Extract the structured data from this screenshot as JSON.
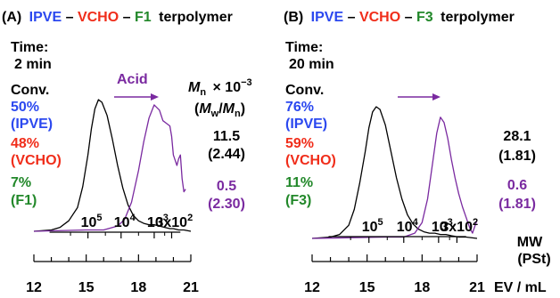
{
  "colors": {
    "ipve": "#2b48ef",
    "vcho": "#f02d1a",
    "f_monomer": "#22882a",
    "acid": "#7a2aa0",
    "black": "#000000"
  },
  "chart_data": [
    {
      "type": "line",
      "title": {
        "label": "(A)",
        "monomer1": "IPVE",
        "dash1": "–",
        "monomer2": "VCHO",
        "dash2": "–",
        "monomer3": "F1",
        "suffix": "terpolymer"
      },
      "time": {
        "label": "Time:",
        "value": "2 min"
      },
      "conversion": {
        "label": "Conv.",
        "ipve_value": "50%",
        "ipve_name": "(IPVE)",
        "vcho_value": "48%",
        "vcho_name": "(VCHO)",
        "f_value": "7%",
        "f_name": "(F1)"
      },
      "arrow_label": "Acid",
      "mn_header": {
        "mn": "M",
        "mn_sub": "n",
        "times": "× 10",
        "exp": "−3",
        "open": "(",
        "mw": "M",
        "mw_sub": "w",
        "slash": "/",
        "mn2": "M",
        "mn2_sub": "n",
        "close": ")"
      },
      "values": {
        "black_mn": "11.5",
        "black_pdi": "(2.44)",
        "purple_mn": "0.5",
        "purple_pdi": "(2.30)"
      },
      "x_axis": {
        "xlabel": "",
        "range": [
          12,
          21
        ],
        "ticks": [
          "12",
          "15",
          "18",
          "21"
        ]
      },
      "mw_axis": {
        "ticks": [
          {
            "ev": 15.1,
            "base": "10",
            "exp": "5"
          },
          {
            "ev": 17.0,
            "base": "10",
            "exp": "4"
          },
          {
            "ev": 18.9,
            "base": "10",
            "exp": "3"
          },
          {
            "ev": 19.9,
            "label": "3x10",
            "exp": "2"
          }
        ]
      },
      "series": [
        {
          "color": "black",
          "x": [
            12.0,
            13.0,
            13.5,
            14.0,
            14.5,
            14.8,
            15.1,
            15.3,
            15.5,
            15.7,
            15.9,
            16.2,
            16.5,
            16.8,
            17.1,
            17.4,
            17.7,
            18.0,
            18.3,
            18.6,
            18.9,
            19.2,
            19.5,
            19.8,
            20.0,
            20.3,
            20.6,
            21.0
          ],
          "y": [
            0.0,
            0.01,
            0.03,
            0.08,
            0.18,
            0.34,
            0.58,
            0.78,
            0.93,
            1.0,
            0.98,
            0.88,
            0.7,
            0.5,
            0.33,
            0.2,
            0.12,
            0.08,
            0.06,
            0.05,
            0.05,
            0.04,
            0.03,
            0.02,
            0.02,
            0.01,
            0.01,
            0.0
          ]
        },
        {
          "color": "acid",
          "x": [
            12.0,
            15.0,
            16.0,
            16.8,
            17.2,
            17.6,
            18.0,
            18.3,
            18.6,
            18.9,
            19.2,
            19.4,
            19.6,
            19.8,
            19.9,
            20.0,
            20.1,
            20.2,
            20.3,
            20.4,
            20.5,
            20.6,
            20.7
          ],
          "y": [
            0.0,
            0.01,
            0.01,
            0.04,
            0.09,
            0.22,
            0.46,
            0.68,
            0.86,
            0.96,
            0.92,
            0.84,
            0.82,
            0.8,
            0.72,
            0.58,
            0.54,
            0.5,
            0.55,
            0.58,
            0.4,
            0.3,
            0.32
          ]
        }
      ]
    },
    {
      "type": "line",
      "title": {
        "label": "(B)",
        "monomer1": "IPVE",
        "dash1": "–",
        "monomer2": "VCHO",
        "dash2": "–",
        "monomer3": "F3",
        "suffix": "terpolymer"
      },
      "time": {
        "label": "Time:",
        "value": "20 min"
      },
      "conversion": {
        "label": "Conv.",
        "ipve_value": "76%",
        "ipve_name": "(IPVE)",
        "vcho_value": "59%",
        "vcho_name": "(VCHO)",
        "f_value": "11%",
        "f_name": "(F3)"
      },
      "values": {
        "black_mn": "28.1",
        "black_pdi": "(1.81)",
        "purple_mn": "0.6",
        "purple_pdi": "(1.81)"
      },
      "mw_unit": {
        "mw": "MW",
        "pst": "(PSt)"
      },
      "x_axis": {
        "xlabel": "EV / mL",
        "range": [
          12,
          21
        ],
        "ticks": [
          "12",
          "15",
          "18",
          "21"
        ]
      },
      "mw_axis": {
        "ticks": [
          {
            "ev": 15.1,
            "base": "10",
            "exp": "5"
          },
          {
            "ev": 17.0,
            "base": "10",
            "exp": "4"
          },
          {
            "ev": 18.9,
            "base": "10",
            "exp": "3"
          },
          {
            "ev": 19.9,
            "label": "3x10",
            "exp": "2"
          }
        ]
      },
      "series": [
        {
          "color": "black",
          "x": [
            12.0,
            13.0,
            13.5,
            14.0,
            14.3,
            14.6,
            14.9,
            15.1,
            15.3,
            15.5,
            15.7,
            16.0,
            16.3,
            16.6,
            16.9,
            17.2,
            17.5,
            17.8,
            18.1,
            18.4,
            18.7,
            19.0,
            19.3,
            19.6,
            20.0,
            20.4,
            21.0
          ],
          "y": [
            0.0,
            0.01,
            0.03,
            0.1,
            0.22,
            0.42,
            0.66,
            0.84,
            0.96,
            1.0,
            0.98,
            0.86,
            0.66,
            0.46,
            0.3,
            0.18,
            0.11,
            0.07,
            0.05,
            0.04,
            0.04,
            0.03,
            0.03,
            0.02,
            0.01,
            0.01,
            0.0
          ]
        },
        {
          "color": "acid",
          "x": [
            12.0,
            16.0,
            17.0,
            17.6,
            18.0,
            18.3,
            18.6,
            18.8,
            19.0,
            19.2,
            19.4,
            19.6,
            19.8,
            20.0,
            20.2,
            20.4,
            20.6,
            20.75,
            20.9,
            21.0
          ],
          "y": [
            0.0,
            0.01,
            0.01,
            0.04,
            0.12,
            0.3,
            0.6,
            0.8,
            0.92,
            0.88,
            0.76,
            0.6,
            0.46,
            0.34,
            0.24,
            0.16,
            0.08,
            0.04,
            0.1,
            0.14
          ]
        }
      ]
    }
  ]
}
